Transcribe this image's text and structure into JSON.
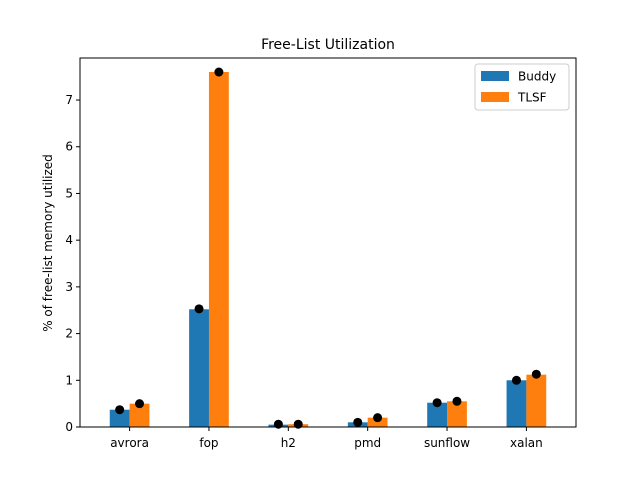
{
  "chart_data": {
    "type": "bar",
    "title": "Free-List Utilization",
    "xlabel": "",
    "ylabel": "% of free-list memory utilized",
    "categories": [
      "avrora",
      "fop",
      "h2",
      "pmd",
      "sunflow",
      "xalan"
    ],
    "series": [
      {
        "name": "Buddy",
        "color": "#1f77b4",
        "values": [
          0.37,
          2.52,
          0.05,
          0.1,
          0.52,
          1.0
        ]
      },
      {
        "name": "TLSF",
        "color": "#ff7f0e",
        "values": [
          0.5,
          7.6,
          0.06,
          0.2,
          0.55,
          1.12
        ]
      }
    ],
    "markers": {
      "color": "#000000",
      "series": [
        [
          0.37,
          2.53,
          0.06,
          0.1,
          0.52,
          1.0
        ],
        [
          0.5,
          7.6,
          0.06,
          0.2,
          0.55,
          1.13
        ]
      ]
    },
    "ylim": [
      0,
      7.9
    ],
    "yticks": [
      "0",
      "1",
      "2",
      "3",
      "4",
      "5",
      "6",
      "7"
    ],
    "grid": false,
    "legend_position": "top-right"
  }
}
